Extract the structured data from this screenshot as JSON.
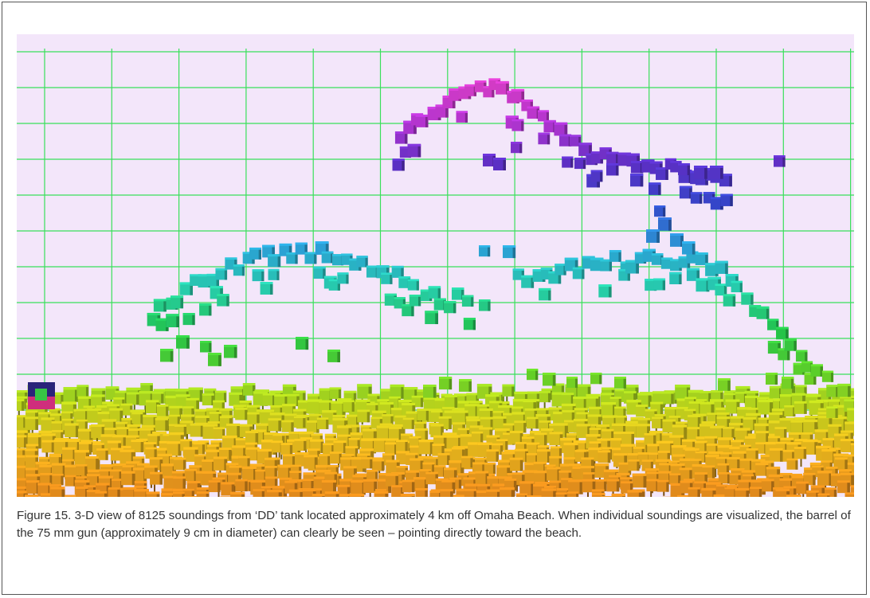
{
  "figure": {
    "caption": "Figure 15.  3-D view of 8125 soundings from ‘DD’ tank located approximately 4 km off Omaha Beach.  When individual soundings are visualized, the barrel of the 75 mm gun (approximately 9 cm in diameter) can clearly be seen – pointing directly toward the beach.",
    "colors": {
      "background": "#f3e6fa",
      "grid": "#39e05a",
      "frame": "#555555",
      "depth_ramp": [
        "#e08a1c",
        "#e2b41c",
        "#b8d21c",
        "#5fcf28",
        "#22c24a",
        "#27cdaa",
        "#2b9fd6",
        "#3347c9",
        "#5b2fc4",
        "#b334cf",
        "#d63cc4"
      ]
    },
    "scale_marker": {
      "outer_color": "#2a237a",
      "inner_color": "#cf2e7c",
      "center_color": "#37c544"
    }
  }
}
